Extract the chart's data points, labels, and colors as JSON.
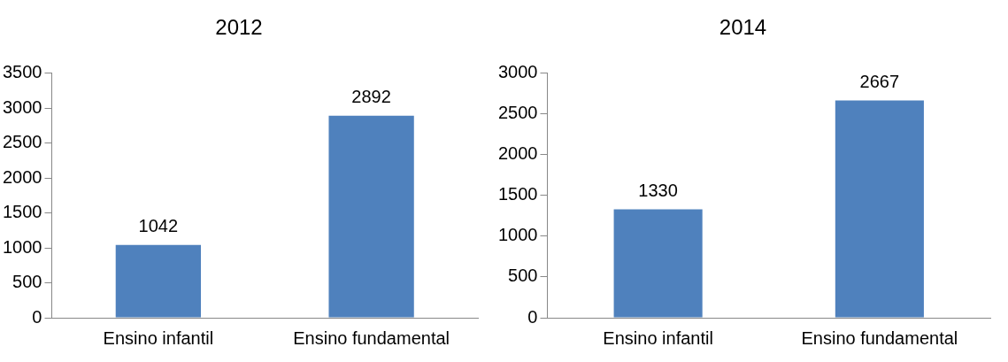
{
  "chart_data": [
    {
      "type": "bar",
      "title": "2012",
      "categories": [
        "Ensino infantil",
        "Ensino fundamental"
      ],
      "values": [
        1042,
        2892
      ],
      "color": "#4f81bd",
      "ylim": [
        0,
        3500
      ],
      "yticks": [
        0,
        500,
        1000,
        1500,
        2000,
        2500,
        3000,
        3500
      ],
      "grid": false,
      "legend": false,
      "data_labels": true
    },
    {
      "type": "bar",
      "title": "2014",
      "categories": [
        "Ensino infantil",
        "Ensino fundamental"
      ],
      "values": [
        1330,
        2667
      ],
      "color": "#4f81bd",
      "ylim": [
        0,
        3000
      ],
      "yticks": [
        0,
        500,
        1000,
        1500,
        2000,
        2500,
        3000
      ],
      "grid": false,
      "legend": false,
      "data_labels": true
    }
  ]
}
